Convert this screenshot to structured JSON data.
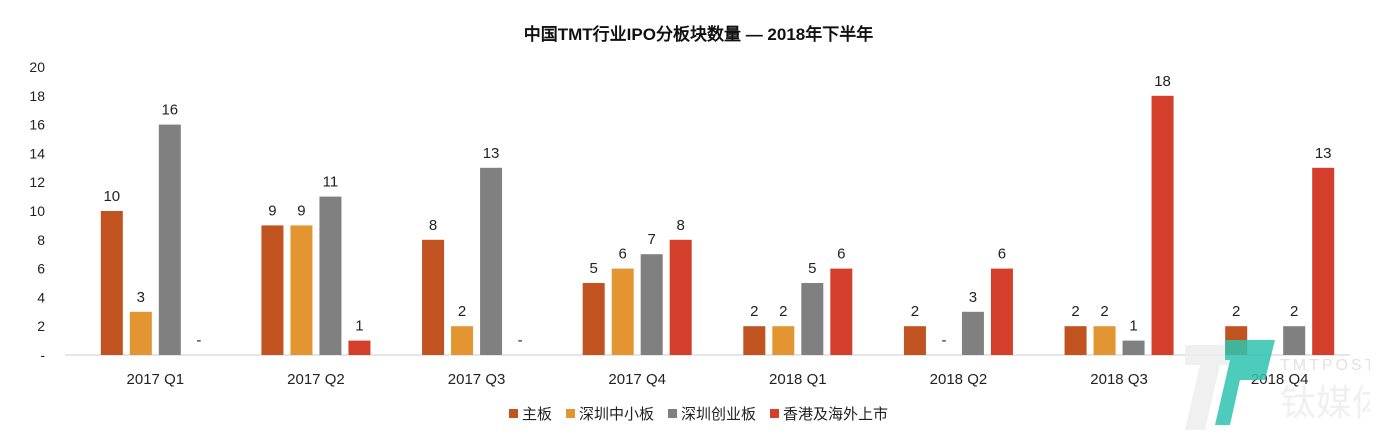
{
  "chart_data": {
    "type": "bar",
    "title": "中国TMT行业IPO分板块数量 — 2018年下半年",
    "xlabel": "",
    "ylabel": "",
    "ylim": [
      0,
      20
    ],
    "yticks": [
      "-",
      "2",
      "4",
      "6",
      "8",
      "10",
      "12",
      "14",
      "16",
      "18",
      "20"
    ],
    "grid": false,
    "legend_position": "bottom",
    "categories": [
      "2017 Q1",
      "2017 Q2",
      "2017 Q3",
      "2017 Q4",
      "2018 Q1",
      "2018 Q2",
      "2018 Q3",
      "2018 Q4"
    ],
    "series": [
      {
        "name": "主板",
        "color": "#c0531f",
        "values": [
          10,
          9,
          8,
          5,
          2,
          2,
          2,
          2
        ]
      },
      {
        "name": "深圳中小板",
        "color": "#e39532",
        "values": [
          3,
          9,
          2,
          6,
          2,
          0,
          2,
          null
        ]
      },
      {
        "name": "深圳创业板",
        "color": "#808080",
        "values": [
          16,
          11,
          13,
          7,
          5,
          3,
          1,
          2
        ]
      },
      {
        "name": "香港及海外上市",
        "color": "#d43f2b",
        "values": [
          0,
          1,
          0,
          8,
          6,
          6,
          18,
          13
        ]
      }
    ],
    "zero_label": "-"
  },
  "watermark": {
    "text": "TMTPOST 钛媒体"
  }
}
